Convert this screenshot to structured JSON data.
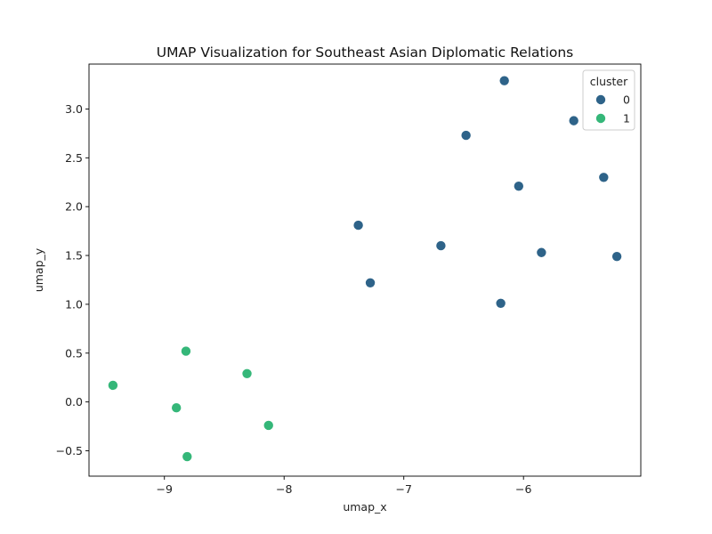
{
  "chart_data": {
    "type": "scatter",
    "title": "UMAP Visualization for Southeast Asian Diplomatic Relations",
    "xlabel": "umap_x",
    "ylabel": "umap_y",
    "xlim": [
      -9.63,
      -5.02
    ],
    "ylim": [
      -0.76,
      3.46
    ],
    "xticks": [
      -9,
      -8,
      -7,
      -6
    ],
    "xtick_labels": [
      "−9",
      "−8",
      "−7",
      "−6"
    ],
    "yticks": [
      -0.5,
      0.0,
      0.5,
      1.0,
      1.5,
      2.0,
      2.5,
      3.0
    ],
    "ytick_labels": [
      "−0.5",
      "0.0",
      "0.5",
      "1.0",
      "1.5",
      "2.0",
      "2.5",
      "3.0"
    ],
    "grid": false,
    "legend": {
      "title": "cluster",
      "position": "top-right"
    },
    "series": [
      {
        "name": "0",
        "color": "#2e6389",
        "points": [
          {
            "x": -6.16,
            "y": 3.29
          },
          {
            "x": -5.58,
            "y": 2.88
          },
          {
            "x": -6.48,
            "y": 2.73
          },
          {
            "x": -5.33,
            "y": 2.3
          },
          {
            "x": -6.04,
            "y": 2.21
          },
          {
            "x": -7.38,
            "y": 1.81
          },
          {
            "x": -6.69,
            "y": 1.6
          },
          {
            "x": -5.85,
            "y": 1.53
          },
          {
            "x": -5.22,
            "y": 1.49
          },
          {
            "x": -7.28,
            "y": 1.22
          },
          {
            "x": -6.19,
            "y": 1.01
          }
        ]
      },
      {
        "name": "1",
        "color": "#35b779",
        "points": [
          {
            "x": -8.82,
            "y": 0.52
          },
          {
            "x": -8.31,
            "y": 0.29
          },
          {
            "x": -9.43,
            "y": 0.17
          },
          {
            "x": -8.9,
            "y": -0.06
          },
          {
            "x": -8.13,
            "y": -0.24
          },
          {
            "x": -8.81,
            "y": -0.56
          }
        ]
      }
    ]
  }
}
